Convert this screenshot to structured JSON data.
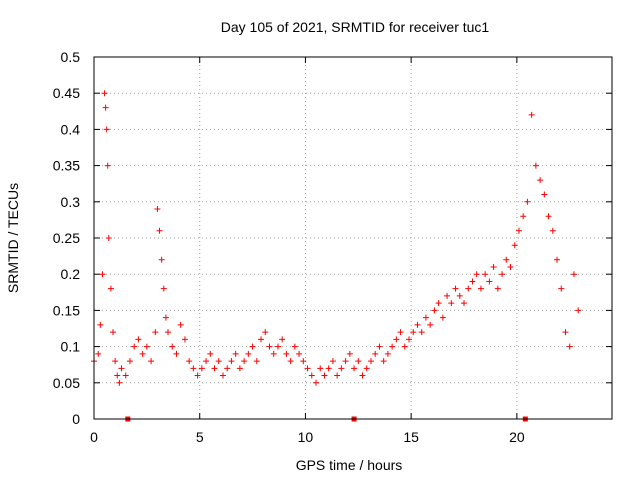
{
  "chart_data": {
    "type": "scatter",
    "title": "Day 105 of 2021, SRMTID for receiver tuc1",
    "xlabel": "GPS time / hours",
    "ylabel": "SRMTID / TECUs",
    "xlim": [
      0,
      24.5
    ],
    "ylim": [
      0,
      0.5
    ],
    "x_ticks": [
      0,
      5,
      10,
      15,
      20
    ],
    "x_tick_labels": [
      "0",
      "5",
      "10",
      "15",
      "20"
    ],
    "y_ticks": [
      0,
      0.05,
      0.1,
      0.15,
      0.2,
      0.25,
      0.3,
      0.35,
      0.4,
      0.45,
      0.5
    ],
    "y_tick_labels": [
      "0",
      "0.05",
      "0.1",
      "0.15",
      "0.2",
      "0.25",
      "0.3",
      "0.35",
      "0.4",
      "0.45",
      "0.5"
    ],
    "grid": true,
    "marker": "+",
    "color": "#ff0000",
    "series": [
      {
        "name": "SRMTID",
        "x": [
          0.0,
          0.2,
          0.3,
          0.4,
          0.5,
          0.55,
          0.6,
          0.65,
          0.7,
          0.8,
          0.9,
          1.0,
          1.1,
          1.2,
          1.3,
          1.5,
          1.7,
          1.9,
          2.1,
          2.3,
          2.5,
          2.7,
          2.9,
          3.0,
          3.1,
          3.2,
          3.3,
          3.4,
          3.5,
          3.7,
          3.9,
          4.1,
          4.3,
          4.5,
          4.7,
          4.9,
          5.1,
          5.3,
          5.5,
          5.7,
          5.9,
          6.1,
          6.3,
          6.5,
          6.7,
          6.9,
          7.1,
          7.3,
          7.5,
          7.7,
          7.9,
          8.1,
          8.3,
          8.5,
          8.7,
          8.9,
          9.1,
          9.3,
          9.5,
          9.7,
          9.9,
          10.1,
          10.3,
          10.5,
          10.7,
          10.9,
          11.1,
          11.3,
          11.5,
          11.7,
          11.9,
          12.1,
          12.3,
          12.5,
          12.7,
          12.9,
          13.1,
          13.3,
          13.5,
          13.7,
          13.9,
          14.1,
          14.3,
          14.5,
          14.7,
          14.9,
          15.1,
          15.3,
          15.5,
          15.7,
          15.9,
          16.1,
          16.3,
          16.5,
          16.7,
          16.9,
          17.1,
          17.3,
          17.5,
          17.7,
          17.9,
          18.1,
          18.3,
          18.5,
          18.7,
          18.9,
          19.1,
          19.3,
          19.5,
          19.7,
          19.9,
          20.1,
          20.3,
          20.5,
          20.7,
          20.9,
          21.1,
          21.3,
          21.5,
          21.7,
          21.9,
          22.1,
          22.3,
          22.5,
          22.7,
          22.9
        ],
        "y": [
          0.08,
          0.09,
          0.13,
          0.2,
          0.45,
          0.43,
          0.4,
          0.35,
          0.25,
          0.18,
          0.12,
          0.08,
          0.06,
          0.05,
          0.07,
          0.06,
          0.08,
          0.1,
          0.11,
          0.09,
          0.1,
          0.08,
          0.12,
          0.29,
          0.26,
          0.22,
          0.18,
          0.14,
          0.12,
          0.1,
          0.09,
          0.13,
          0.11,
          0.08,
          0.07,
          0.06,
          0.07,
          0.08,
          0.09,
          0.07,
          0.08,
          0.06,
          0.07,
          0.08,
          0.09,
          0.07,
          0.08,
          0.09,
          0.1,
          0.08,
          0.11,
          0.12,
          0.1,
          0.09,
          0.1,
          0.11,
          0.09,
          0.08,
          0.1,
          0.09,
          0.08,
          0.07,
          0.06,
          0.05,
          0.07,
          0.06,
          0.07,
          0.08,
          0.06,
          0.07,
          0.08,
          0.09,
          0.07,
          0.08,
          0.06,
          0.07,
          0.08,
          0.09,
          0.1,
          0.08,
          0.09,
          0.1,
          0.11,
          0.12,
          0.1,
          0.11,
          0.12,
          0.13,
          0.12,
          0.14,
          0.13,
          0.15,
          0.16,
          0.14,
          0.17,
          0.16,
          0.18,
          0.17,
          0.16,
          0.18,
          0.19,
          0.2,
          0.18,
          0.2,
          0.19,
          0.21,
          0.18,
          0.2,
          0.22,
          0.21,
          0.24,
          0.26,
          0.28,
          0.3,
          0.42,
          0.35,
          0.33,
          0.31,
          0.28,
          0.26,
          0.22,
          0.18,
          0.12,
          0.1,
          0.2,
          0.15
        ]
      }
    ],
    "x_axis_markers": [
      1.6,
      12.3,
      20.4
    ]
  }
}
